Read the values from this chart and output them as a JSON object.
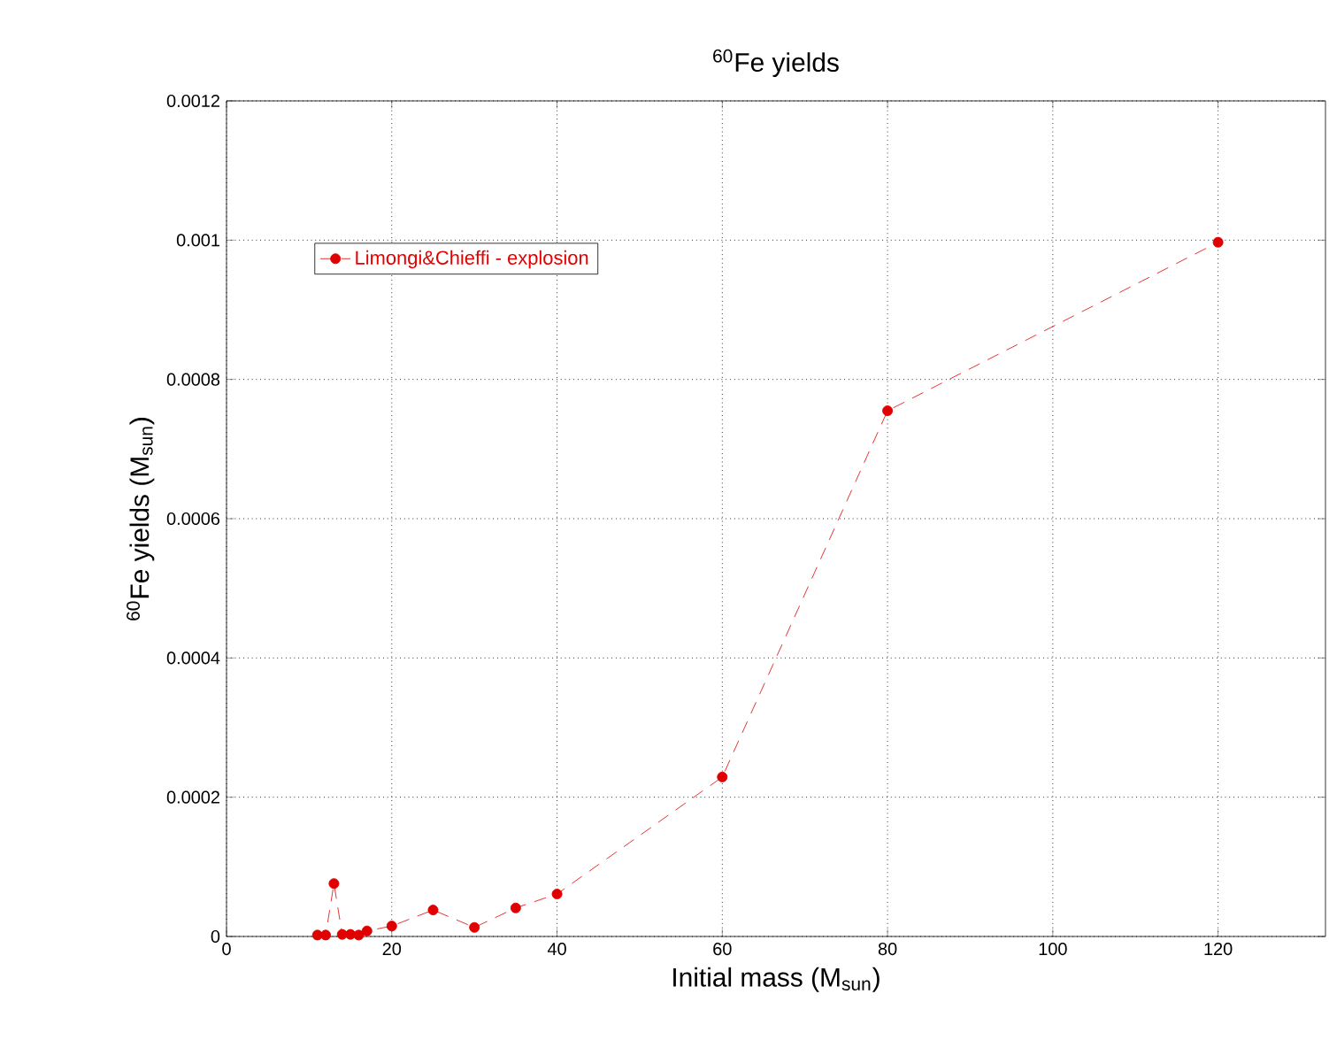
{
  "chart_data": {
    "type": "line",
    "title": "$^{60}$Fe yields",
    "xlabel": "Initial mass (M$_{sun}$)",
    "ylabel": "$^{60}$Fe yields (M$_{sun}$)",
    "x": [
      11,
      12,
      13,
      14,
      15,
      16,
      17,
      20,
      25,
      30,
      35,
      40,
      60,
      80,
      120
    ],
    "series": [
      {
        "name": "Limongi&Chieffi - explosion",
        "color": "#e00000",
        "values": [
          2e-06,
          2e-06,
          7.6e-05,
          3e-06,
          3e-06,
          2e-06,
          8e-06,
          1.5e-05,
          3.8e-05,
          1.3e-05,
          4.1e-05,
          6.1e-05,
          0.000229,
          0.000755,
          0.000997
        ]
      }
    ],
    "xlim": [
      0,
      133
    ],
    "ylim": [
      0,
      0.0012
    ],
    "xticks": [
      0,
      20,
      40,
      60,
      80,
      100,
      120
    ],
    "yticks": [
      0,
      0.0002,
      0.0004,
      0.0006,
      0.0008,
      0.001,
      0.0012
    ],
    "grid": true,
    "legend": "top left",
    "marker": "circle",
    "line_style": "dashed"
  }
}
